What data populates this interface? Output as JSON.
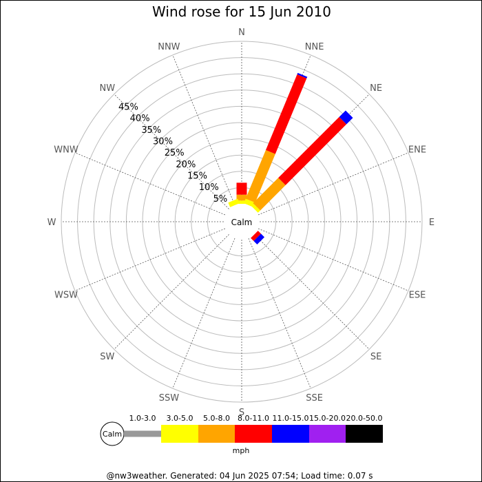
{
  "chart_data": {
    "type": "windrose",
    "title": "Wind rose for 15 Jun 2010",
    "directions": [
      "N",
      "NNE",
      "NE",
      "ENE",
      "E",
      "ESE",
      "SE",
      "SSE",
      "S",
      "SSW",
      "SW",
      "WSW",
      "W",
      "WNW",
      "NW",
      "NNW"
    ],
    "ring_labels": [
      "5%",
      "10%",
      "15%",
      "20%",
      "25%",
      "30%",
      "35%",
      "40%",
      "45%"
    ],
    "rmax_percent": 50,
    "center_label": "Calm",
    "unit": "mph",
    "speed_bins": [
      {
        "label": "1.0-3.0",
        "color": "#999999"
      },
      {
        "label": "3.0-5.0",
        "color": "#ffff00"
      },
      {
        "label": "5.0-8.0",
        "color": "#ffa500"
      },
      {
        "label": "8.0-11.0",
        "color": "#ff0000"
      },
      {
        "label": "11.0-15.0",
        "color": "#0000ff"
      },
      {
        "label": "15.0-20.0",
        "color": "#a020f0"
      },
      {
        "label": "20.0-50.0",
        "color": "#000000"
      }
    ],
    "series": [
      {
        "direction": "N",
        "values": [
          0,
          1.0,
          1.8,
          3.7,
          0,
          0,
          0
        ]
      },
      {
        "direction": "NNE",
        "values": [
          0,
          1.5,
          16.2,
          25.2,
          0.5,
          0,
          0
        ]
      },
      {
        "direction": "NE",
        "values": [
          0,
          1.0,
          11.0,
          26.5,
          2.8,
          0,
          0
        ]
      },
      {
        "direction": "ENE",
        "values": [
          0,
          0,
          0,
          0,
          0,
          0,
          0
        ]
      },
      {
        "direction": "E",
        "values": [
          0,
          0,
          0,
          0,
          0,
          0,
          0
        ]
      },
      {
        "direction": "ESE",
        "values": [
          0,
          0,
          0,
          0,
          0,
          0,
          0
        ]
      },
      {
        "direction": "SE",
        "values": [
          0,
          0,
          0,
          1.3,
          1.5,
          0,
          0
        ]
      },
      {
        "direction": "SSE",
        "values": [
          0,
          0,
          0,
          0,
          0,
          0,
          0
        ]
      },
      {
        "direction": "S",
        "values": [
          0,
          0,
          0,
          0,
          0,
          0,
          0
        ]
      },
      {
        "direction": "SSW",
        "values": [
          0,
          0,
          0,
          0,
          0,
          0,
          0
        ]
      },
      {
        "direction": "SW",
        "values": [
          0,
          0,
          0,
          0,
          0,
          0,
          0
        ]
      },
      {
        "direction": "WSW",
        "values": [
          0,
          0,
          0,
          0,
          0,
          0,
          0
        ]
      },
      {
        "direction": "W",
        "values": [
          0,
          0,
          0,
          0,
          0,
          0,
          0
        ]
      },
      {
        "direction": "WNW",
        "values": [
          0,
          0,
          0,
          0,
          0,
          0,
          0
        ]
      },
      {
        "direction": "NW",
        "values": [
          0,
          0,
          0,
          0,
          0,
          0,
          0
        ]
      },
      {
        "direction": "NNW",
        "values": [
          0,
          1.5,
          0,
          0,
          0,
          0,
          0
        ]
      }
    ],
    "footer": "@nw3weather. Generated: 04 Jun 2025 07:54; Load time: 0.07 s"
  }
}
